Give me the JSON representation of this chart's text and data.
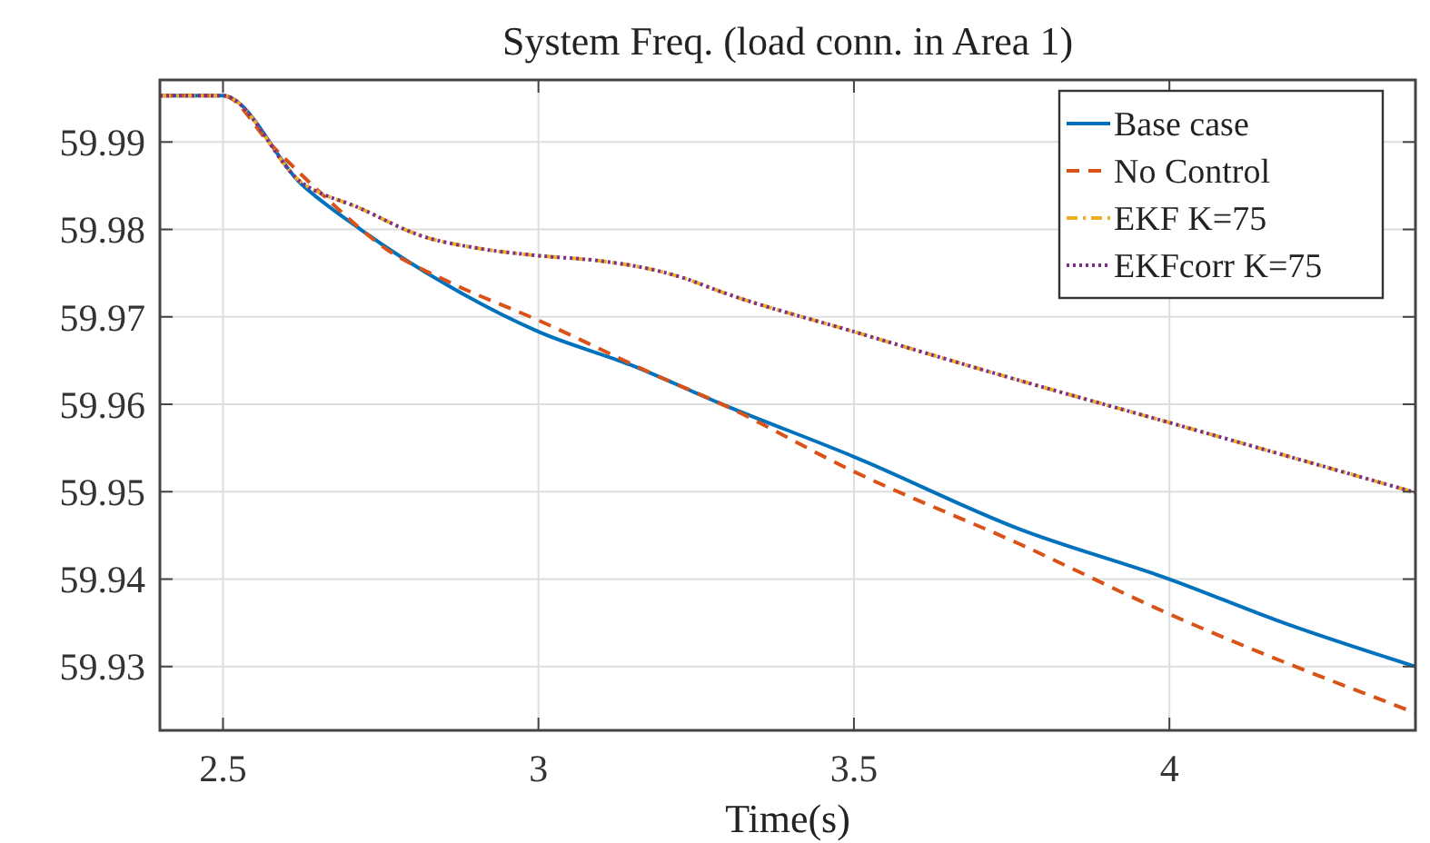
{
  "chart_data": {
    "type": "line",
    "title": "System Freq. (load conn. in Area 1)",
    "xlabel": "Time(s)",
    "xlim": [
      2.4,
      4.39
    ],
    "ylim": [
      59.9227,
      59.9971
    ],
    "xticks": [
      2.5,
      3,
      3.5,
      4
    ],
    "yticks": [
      59.93,
      59.94,
      59.95,
      59.96,
      59.97,
      59.98,
      59.99
    ],
    "grid": true,
    "legend": "top right",
    "series": [
      {
        "name": "Base case",
        "color": "#0072bd",
        "line_style": "solid",
        "x": [
          2.4,
          2.5,
          2.624,
          2.718,
          2.861,
          3.0,
          3.146,
          3.288,
          3.5,
          3.763,
          4.0,
          4.181,
          4.39
        ],
        "values": [
          59.9953,
          59.9953,
          59.9852,
          59.98,
          59.9734,
          59.9683,
          59.9645,
          59.9601,
          59.954,
          59.9457,
          59.94,
          59.935,
          59.93
        ]
      },
      {
        "name": "No Control",
        "color": "#d95319",
        "line_style": "dashed",
        "x": [
          2.4,
          2.5,
          2.576,
          2.671,
          2.756,
          2.861,
          3.0,
          3.193,
          3.288,
          3.5,
          3.763,
          4.0,
          4.39
        ],
        "values": [
          59.9953,
          59.9953,
          59.9897,
          59.9831,
          59.9779,
          59.9739,
          59.9696,
          59.9631,
          59.9601,
          59.9523,
          59.944,
          59.936,
          59.9247
        ]
      },
      {
        "name": "EKF K=75",
        "color": "#edb120",
        "line_style": "dashdot",
        "x": [
          2.4,
          2.5,
          2.624,
          2.718,
          2.813,
          2.908,
          3.0,
          3.098,
          3.193,
          3.232,
          3.288,
          3.5,
          3.754,
          4.0,
          4.39
        ],
        "values": [
          59.9953,
          59.9953,
          59.9854,
          59.9824,
          59.9793,
          59.9778,
          59.977,
          59.9764,
          59.9752,
          59.9744,
          59.9729,
          59.9683,
          59.9629,
          59.9579,
          59.9499
        ]
      },
      {
        "name": "EKFcorr K=75",
        "color": "#7e2f8e",
        "line_style": "dotted",
        "x": [
          2.4,
          2.5,
          2.624,
          2.718,
          2.813,
          2.908,
          3.0,
          3.098,
          3.193,
          3.232,
          3.288,
          3.5,
          3.754,
          4.0,
          4.39
        ],
        "values": [
          59.9953,
          59.9953,
          59.9854,
          59.9824,
          59.9793,
          59.9778,
          59.977,
          59.9764,
          59.9752,
          59.9744,
          59.9729,
          59.9683,
          59.9629,
          59.9579,
          59.9499
        ]
      }
    ]
  }
}
